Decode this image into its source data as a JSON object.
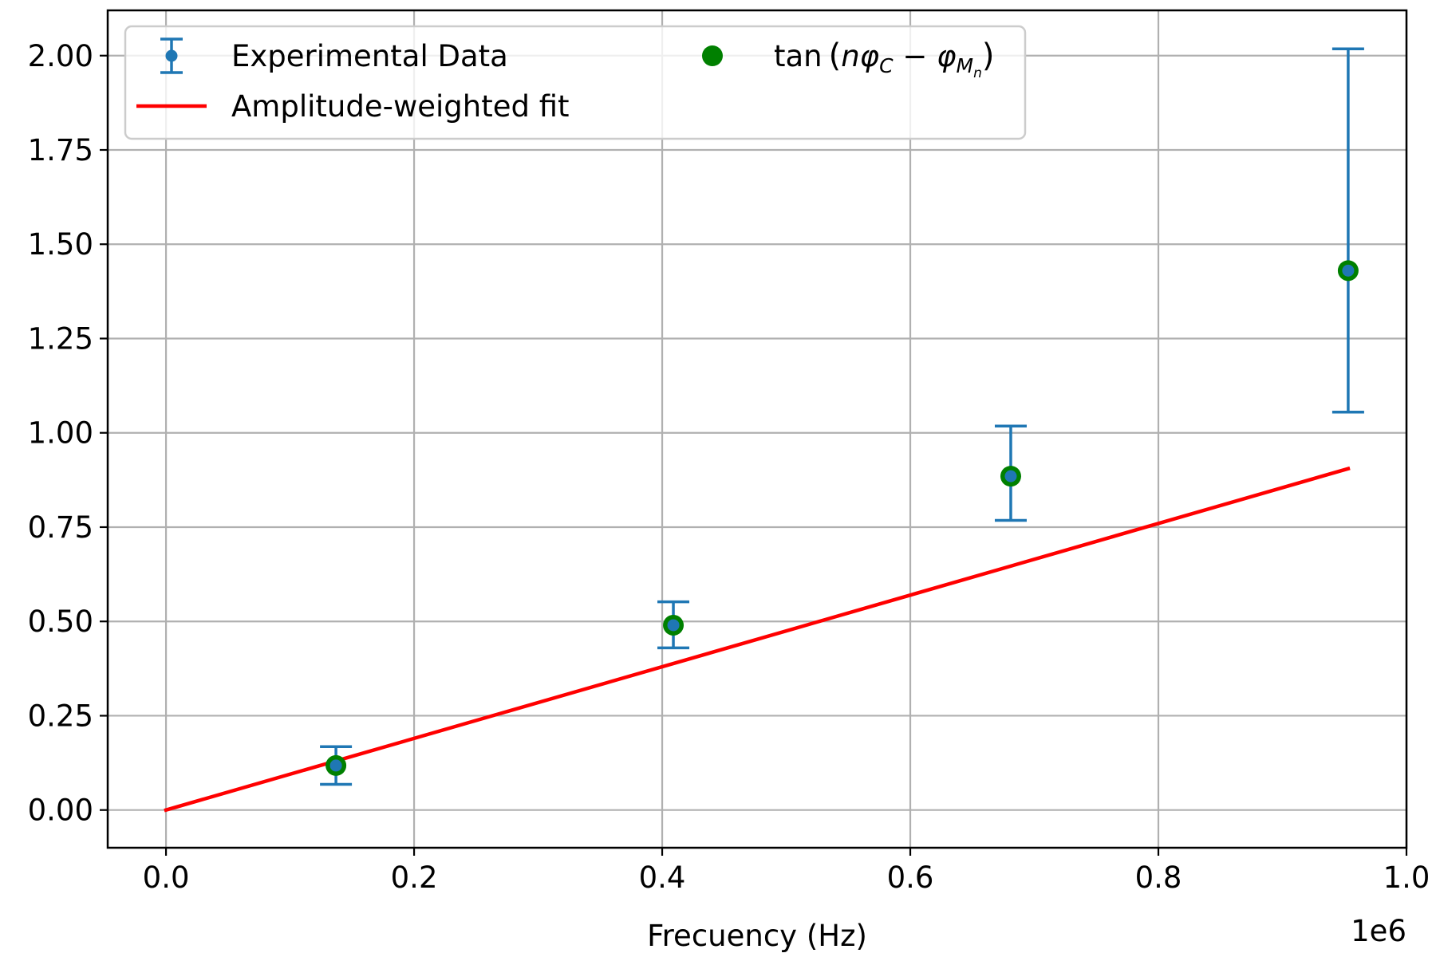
{
  "chart_data": {
    "type": "scatter",
    "title": "",
    "xlabel": "Frecuency (Hz)",
    "ylabel": "",
    "x_offset_label": "1e6",
    "xlim": [
      -0.047,
      1.0
    ],
    "ylim": [
      -0.1,
      2.12
    ],
    "xticks": [
      0.0,
      0.2,
      0.4,
      0.6,
      0.8,
      1.0
    ],
    "xtick_labels": [
      "0.0",
      "0.2",
      "0.4",
      "0.6",
      "0.8",
      "1.0"
    ],
    "yticks": [
      0.0,
      0.25,
      0.5,
      0.75,
      1.0,
      1.25,
      1.5,
      1.75,
      2.0
    ],
    "ytick_labels": [
      "0.00",
      "0.25",
      "0.50",
      "0.75",
      "1.00",
      "1.25",
      "1.50",
      "1.75",
      "2.00"
    ],
    "grid": true,
    "legend_position": "top-left",
    "series": [
      {
        "name": "Experimental Data",
        "kind": "errorbar",
        "color": "#1f77b4",
        "x": [
          0.137,
          0.409,
          0.681,
          0.953
        ],
        "y": [
          0.118,
          0.49,
          0.885,
          1.43
        ],
        "yerr_low": [
          0.068,
          0.43,
          0.768,
          1.055
        ],
        "yerr_high": [
          0.168,
          0.552,
          1.018,
          2.018
        ]
      },
      {
        "name": "Amplitude-weighted fit",
        "kind": "line",
        "color": "#ff0000",
        "x": [
          0.0,
          0.953
        ],
        "y": [
          0.0,
          0.905
        ]
      },
      {
        "name": "tan",
        "kind": "scatter",
        "color": "#008000",
        "x": [
          0.137,
          0.409,
          0.681,
          0.953
        ],
        "y": [
          0.118,
          0.49,
          0.885,
          1.43
        ]
      }
    ]
  }
}
